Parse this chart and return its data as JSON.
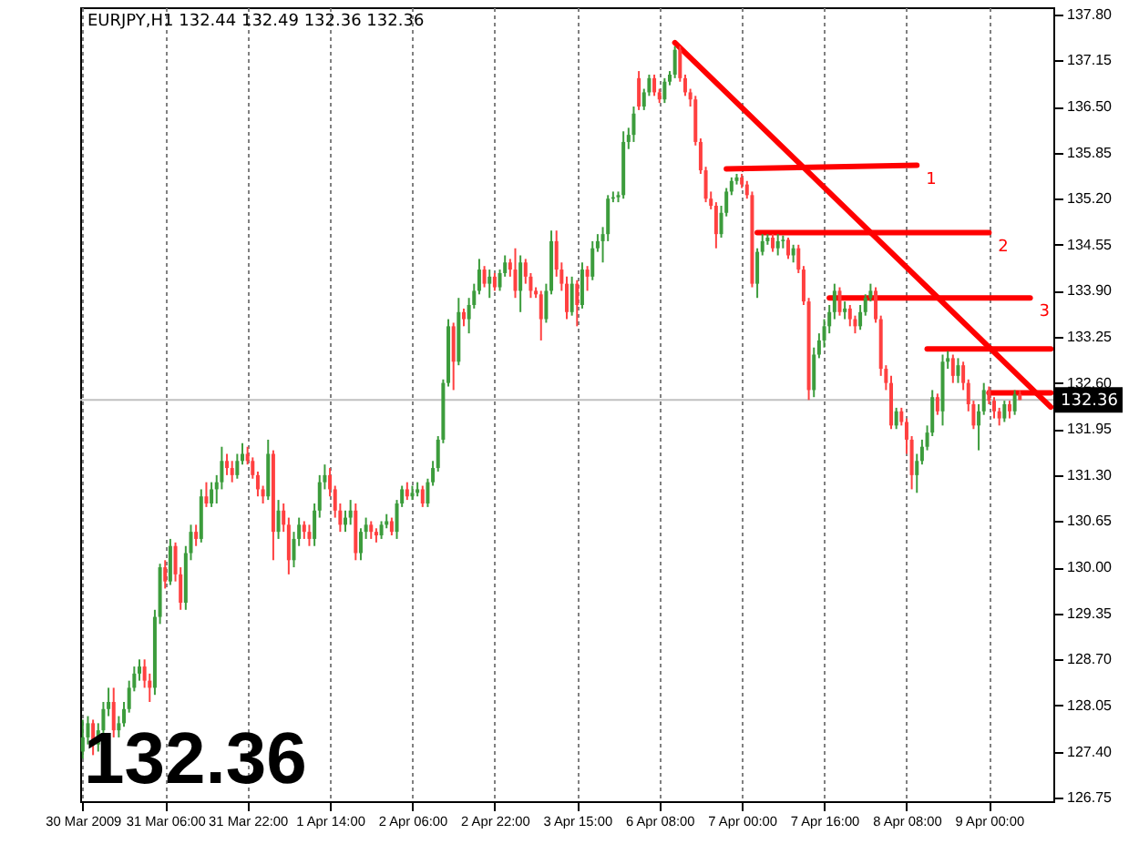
{
  "chart_data": {
    "type": "candlestick",
    "title": "EURJPY,H1  132.44 132.49 132.36 132.36",
    "categories": [
      "30 Mar 2009",
      null,
      null,
      null,
      null,
      null,
      null,
      null,
      null,
      null,
      null,
      null,
      null,
      null,
      null,
      null,
      "31 Mar 06:00",
      null,
      null,
      null,
      null,
      null,
      null,
      null,
      null,
      null,
      null,
      null,
      null,
      null,
      null,
      null,
      "31 Mar 22:00",
      null,
      null,
      null,
      null,
      null,
      null,
      null,
      null,
      null,
      null,
      null,
      null,
      null,
      null,
      null,
      "1 Apr 14:00",
      null,
      null,
      null,
      null,
      null,
      null,
      null,
      null,
      null,
      null,
      null,
      null,
      null,
      null,
      null,
      "2 Apr 06:00",
      null,
      null,
      null,
      null,
      null,
      null,
      null,
      null,
      null,
      null,
      null,
      null,
      null,
      null,
      null,
      "2 Apr 22:00",
      null,
      null,
      null,
      null,
      null,
      null,
      null,
      null,
      null,
      null,
      null,
      null,
      null,
      null,
      null,
      "3 Apr 15:00",
      null,
      null,
      null,
      null,
      null,
      null,
      null,
      null,
      null,
      null,
      null,
      null,
      null,
      null,
      null,
      "6 Apr 08:00",
      null,
      null,
      null,
      null,
      null,
      null,
      null,
      null,
      null,
      null,
      null,
      null,
      null,
      null,
      null,
      "7 Apr 00:00",
      null,
      null,
      null,
      null,
      null,
      null,
      null,
      null,
      null,
      null,
      null,
      null,
      null,
      null,
      null,
      "7 Apr 16:00",
      null,
      null,
      null,
      null,
      null,
      null,
      null,
      null,
      null,
      null,
      null,
      null,
      null,
      null,
      null,
      "8 Apr 08:00",
      null,
      null,
      null,
      null,
      null,
      null,
      null,
      null,
      null,
      null,
      null,
      null,
      null,
      null,
      null,
      "9 Apr 00:00",
      null,
      null,
      null,
      null,
      null,
      null,
      null,
      null,
      null,
      null,
      null,
      null
    ],
    "ohlc": [
      [
        127.4,
        127.85,
        127.3,
        127.6
      ],
      [
        127.6,
        127.9,
        127.5,
        127.8
      ],
      [
        127.8,
        127.85,
        127.35,
        127.5
      ],
      [
        127.5,
        127.8,
        127.4,
        127.7
      ],
      [
        127.7,
        128.1,
        127.6,
        128.0
      ],
      [
        128.0,
        128.3,
        127.9,
        128.1
      ],
      [
        128.1,
        128.3,
        127.6,
        127.7
      ],
      [
        127.7,
        127.9,
        127.6,
        127.8
      ],
      [
        127.8,
        128.1,
        127.75,
        128.0
      ],
      [
        128.0,
        128.4,
        127.95,
        128.3
      ],
      [
        128.3,
        128.6,
        128.25,
        128.5
      ],
      [
        128.5,
        128.7,
        128.4,
        128.6
      ],
      [
        128.6,
        128.7,
        128.3,
        128.4
      ],
      [
        128.4,
        128.5,
        128.1,
        128.3
      ],
      [
        128.3,
        129.4,
        128.2,
        129.3
      ],
      [
        129.3,
        130.05,
        129.2,
        130.0
      ],
      [
        130.0,
        130.1,
        129.7,
        129.8
      ],
      [
        129.8,
        130.4,
        129.75,
        130.3
      ],
      [
        130.3,
        130.35,
        129.8,
        129.9
      ],
      [
        129.9,
        130.0,
        129.4,
        129.5
      ],
      [
        129.5,
        130.3,
        129.4,
        130.2
      ],
      [
        130.2,
        130.6,
        130.1,
        130.5
      ],
      [
        130.5,
        130.6,
        130.3,
        130.4
      ],
      [
        130.4,
        131.1,
        130.35,
        131.0
      ],
      [
        131.0,
        131.2,
        130.85,
        130.9
      ],
      [
        130.9,
        131.2,
        130.85,
        131.1
      ],
      [
        131.1,
        131.3,
        130.9,
        131.2
      ],
      [
        131.2,
        131.7,
        131.1,
        131.5
      ],
      [
        131.5,
        131.6,
        131.3,
        131.4
      ],
      [
        131.4,
        131.5,
        131.2,
        131.3
      ],
      [
        131.3,
        131.6,
        131.25,
        131.5
      ],
      [
        131.5,
        131.75,
        131.45,
        131.6
      ],
      [
        131.6,
        131.7,
        131.45,
        131.5
      ],
      [
        131.5,
        131.55,
        131.25,
        131.3
      ],
      [
        131.3,
        131.35,
        131.0,
        131.1
      ],
      [
        131.1,
        131.15,
        130.9,
        131.0
      ],
      [
        131.0,
        131.8,
        130.95,
        131.6
      ],
      [
        131.6,
        131.65,
        130.1,
        130.5
      ],
      [
        130.5,
        130.95,
        130.4,
        130.8
      ],
      [
        130.8,
        130.9,
        130.5,
        130.6
      ],
      [
        130.6,
        130.7,
        129.9,
        130.1
      ],
      [
        130.1,
        130.5,
        130.0,
        130.4
      ],
      [
        130.4,
        130.7,
        130.3,
        130.6
      ],
      [
        130.6,
        130.65,
        130.4,
        130.5
      ],
      [
        130.5,
        130.6,
        130.3,
        130.4
      ],
      [
        130.4,
        130.9,
        130.3,
        130.8
      ],
      [
        130.8,
        131.3,
        130.7,
        131.2
      ],
      [
        131.2,
        131.45,
        131.1,
        131.3
      ],
      [
        131.3,
        131.4,
        131.0,
        131.1
      ],
      [
        131.1,
        131.15,
        130.7,
        130.8
      ],
      [
        130.8,
        130.9,
        130.5,
        130.6
      ],
      [
        130.6,
        130.8,
        130.5,
        130.7
      ],
      [
        130.7,
        130.95,
        130.6,
        130.8
      ],
      [
        130.8,
        130.9,
        130.1,
        130.2
      ],
      [
        130.2,
        130.55,
        130.1,
        130.5
      ],
      [
        130.5,
        130.7,
        130.4,
        130.6
      ],
      [
        130.6,
        130.65,
        130.4,
        130.5
      ],
      [
        130.5,
        130.55,
        130.35,
        130.45
      ],
      [
        130.45,
        130.65,
        130.4,
        130.6
      ],
      [
        130.6,
        130.75,
        130.55,
        130.65
      ],
      [
        130.65,
        130.7,
        130.45,
        130.5
      ],
      [
        130.5,
        130.95,
        130.4,
        130.9
      ],
      [
        130.9,
        131.15,
        130.85,
        131.1
      ],
      [
        131.1,
        131.2,
        130.95,
        131.0
      ],
      [
        131.0,
        131.15,
        130.95,
        131.05
      ],
      [
        131.05,
        131.2,
        131.0,
        131.1
      ],
      [
        131.1,
        131.15,
        130.85,
        130.9
      ],
      [
        130.9,
        131.25,
        130.85,
        131.2
      ],
      [
        131.2,
        131.5,
        131.15,
        131.4
      ],
      [
        131.4,
        131.85,
        131.35,
        131.8
      ],
      [
        131.8,
        132.65,
        131.75,
        132.6
      ],
      [
        132.6,
        133.5,
        132.55,
        133.4
      ],
      [
        133.4,
        133.45,
        132.5,
        132.9
      ],
      [
        132.9,
        133.8,
        132.85,
        133.6
      ],
      [
        133.6,
        133.65,
        133.4,
        133.5
      ],
      [
        133.5,
        133.8,
        133.3,
        133.7
      ],
      [
        133.7,
        134.0,
        133.65,
        133.9
      ],
      [
        133.9,
        134.35,
        133.85,
        134.2
      ],
      [
        134.2,
        134.25,
        133.95,
        134.0
      ],
      [
        134.0,
        134.2,
        133.8,
        134.1
      ],
      [
        134.1,
        134.15,
        133.9,
        133.95
      ],
      [
        133.95,
        134.2,
        133.9,
        134.15
      ],
      [
        134.15,
        134.4,
        134.1,
        134.3
      ],
      [
        134.3,
        134.35,
        134.1,
        134.2
      ],
      [
        134.2,
        134.5,
        133.8,
        133.9
      ],
      [
        133.9,
        134.4,
        133.6,
        134.3
      ],
      [
        134.3,
        134.35,
        134.0,
        134.1
      ],
      [
        134.1,
        134.15,
        133.8,
        133.9
      ],
      [
        133.9,
        133.95,
        133.8,
        133.85
      ],
      [
        133.85,
        133.9,
        133.2,
        133.5
      ],
      [
        133.5,
        134.0,
        133.45,
        133.9
      ],
      [
        133.9,
        134.75,
        133.85,
        134.6
      ],
      [
        134.6,
        134.75,
        134.1,
        134.2
      ],
      [
        134.2,
        134.3,
        133.9,
        134.0
      ],
      [
        134.0,
        134.1,
        133.5,
        133.6
      ],
      [
        133.6,
        134.1,
        133.55,
        134.0
      ],
      [
        134.0,
        134.05,
        133.4,
        133.7
      ],
      [
        133.7,
        134.3,
        133.65,
        134.2
      ],
      [
        134.2,
        134.25,
        133.9,
        134.1
      ],
      [
        134.1,
        134.6,
        134.05,
        134.5
      ],
      [
        134.5,
        134.7,
        134.45,
        134.6
      ],
      [
        134.6,
        134.8,
        134.3,
        134.7
      ],
      [
        134.7,
        135.25,
        134.6,
        135.2
      ],
      [
        135.2,
        135.3,
        135.15,
        135.22
      ],
      [
        135.22,
        135.3,
        135.15,
        135.25
      ],
      [
        135.25,
        136.15,
        135.2,
        136.0
      ],
      [
        136.0,
        136.2,
        135.9,
        136.1
      ],
      [
        136.1,
        136.5,
        136.0,
        136.4
      ],
      [
        136.9,
        137.0,
        136.45,
        136.5
      ],
      [
        136.5,
        136.75,
        136.45,
        136.7
      ],
      [
        136.7,
        136.95,
        136.65,
        136.9
      ],
      [
        136.9,
        136.95,
        136.65,
        136.7
      ],
      [
        136.7,
        136.75,
        136.55,
        136.6
      ],
      [
        136.6,
        136.9,
        136.55,
        136.85
      ],
      [
        136.85,
        137.0,
        136.8,
        136.95
      ],
      [
        136.95,
        137.35,
        136.9,
        137.3
      ],
      [
        137.3,
        137.35,
        136.85,
        136.9
      ],
      [
        136.9,
        136.95,
        136.65,
        136.7
      ],
      [
        136.7,
        136.75,
        136.5,
        136.6
      ],
      [
        136.6,
        136.65,
        135.95,
        136.0
      ],
      [
        136.0,
        136.05,
        135.55,
        135.6
      ],
      [
        135.6,
        135.65,
        135.15,
        135.2
      ],
      [
        135.2,
        135.3,
        135.05,
        135.1
      ],
      [
        135.1,
        135.15,
        134.5,
        134.7
      ],
      [
        134.7,
        135.1,
        134.65,
        135.0
      ],
      [
        135.0,
        135.35,
        134.95,
        135.3
      ],
      [
        135.3,
        135.5,
        135.25,
        135.45
      ],
      [
        135.45,
        135.55,
        135.4,
        135.5
      ],
      [
        135.5,
        135.55,
        135.35,
        135.4
      ],
      [
        135.4,
        135.45,
        135.2,
        135.25
      ],
      [
        135.25,
        135.3,
        133.95,
        134.0
      ],
      [
        134.0,
        134.5,
        133.8,
        134.45
      ],
      [
        134.45,
        134.7,
        134.4,
        134.6
      ],
      [
        134.6,
        134.7,
        134.55,
        134.65
      ],
      [
        134.65,
        134.7,
        134.45,
        134.5
      ],
      [
        134.5,
        134.7,
        134.4,
        134.6
      ],
      [
        134.6,
        134.68,
        134.5,
        134.62
      ],
      [
        134.62,
        134.65,
        134.35,
        134.4
      ],
      [
        134.4,
        134.55,
        134.3,
        134.5
      ],
      [
        134.5,
        134.55,
        134.15,
        134.2
      ],
      [
        134.2,
        134.25,
        133.7,
        133.75
      ],
      [
        133.75,
        133.8,
        132.36,
        132.5
      ],
      [
        132.5,
        133.1,
        132.4,
        133.0
      ],
      [
        133.0,
        133.3,
        132.95,
        133.2
      ],
      [
        133.2,
        133.5,
        133.1,
        133.4
      ],
      [
        133.4,
        133.7,
        133.3,
        133.6
      ],
      [
        133.6,
        134.0,
        133.5,
        133.9
      ],
      [
        133.9,
        133.95,
        133.55,
        133.6
      ],
      [
        133.6,
        133.75,
        133.5,
        133.65
      ],
      [
        133.65,
        133.7,
        133.4,
        133.5
      ],
      [
        133.5,
        133.55,
        133.3,
        133.4
      ],
      [
        133.4,
        133.7,
        133.35,
        133.6
      ],
      [
        133.6,
        133.85,
        133.55,
        133.8
      ],
      [
        133.8,
        134.0,
        133.75,
        133.9
      ],
      [
        133.9,
        133.95,
        133.45,
        133.5
      ],
      [
        133.5,
        133.55,
        132.7,
        132.8
      ],
      [
        132.8,
        132.85,
        132.5,
        132.6
      ],
      [
        132.6,
        132.7,
        131.95,
        132.0
      ],
      [
        132.0,
        132.25,
        131.95,
        132.2
      ],
      [
        132.2,
        132.25,
        132.0,
        132.05
      ],
      [
        132.05,
        132.1,
        131.6,
        131.8
      ],
      [
        131.8,
        131.85,
        131.1,
        131.3
      ],
      [
        131.3,
        131.6,
        131.05,
        131.5
      ],
      [
        131.5,
        131.8,
        131.45,
        131.7
      ],
      [
        131.7,
        132.0,
        131.65,
        131.9
      ],
      [
        131.9,
        132.5,
        131.85,
        132.4
      ],
      [
        132.4,
        132.45,
        132.15,
        132.2
      ],
      [
        132.2,
        133.0,
        132.0,
        132.9
      ],
      [
        132.9,
        133.05,
        132.8,
        132.95
      ],
      [
        132.95,
        133.0,
        132.6,
        132.7
      ],
      [
        132.7,
        132.95,
        132.6,
        132.85
      ],
      [
        132.85,
        132.9,
        132.5,
        132.6
      ],
      [
        132.6,
        132.65,
        132.2,
        132.3
      ],
      [
        132.3,
        132.35,
        131.95,
        132.0
      ],
      [
        132.0,
        132.3,
        131.65,
        132.2
      ],
      [
        132.2,
        132.6,
        132.15,
        132.5
      ],
      [
        132.5,
        132.55,
        132.3,
        132.35
      ],
      [
        132.35,
        132.4,
        132.1,
        132.2
      ],
      [
        132.2,
        132.25,
        132.0,
        132.1
      ],
      [
        132.1,
        132.35,
        132.05,
        132.3
      ],
      [
        132.3,
        132.35,
        132.1,
        132.2
      ],
      [
        132.2,
        132.5,
        132.15,
        132.44
      ],
      [
        132.44,
        132.49,
        132.36,
        132.36
      ],
      null,
      null,
      null,
      null,
      null,
      null
    ],
    "colors": [
      "#3c9c3c",
      "#3c9c3c",
      "#ff4040",
      "#3c9c3c",
      "#3c9c3c",
      "#3c9c3c",
      "#ff4040",
      "#3c9c3c",
      "#3c9c3c",
      "#3c9c3c",
      "#3c9c3c",
      "#3c9c3c",
      "#ff4040",
      "#ff4040",
      "#3c9c3c",
      "#3c9c3c",
      "#ff4040",
      "#3c9c3c",
      "#ff4040",
      "#ff4040",
      "#3c9c3c",
      "#3c9c3c",
      "#ff4040",
      "#3c9c3c",
      "#ff4040",
      "#3c9c3c",
      "#3c9c3c",
      "#3c9c3c",
      "#ff4040",
      "#ff4040",
      "#3c9c3c",
      "#3c9c3c",
      "#ff4040",
      "#ff4040",
      "#ff4040",
      "#ff4040",
      "#3c9c3c",
      "#ff4040",
      "#3c9c3c",
      "#ff4040",
      "#ff4040",
      "#3c9c3c",
      "#3c9c3c",
      "#ff4040",
      "#ff4040",
      "#3c9c3c",
      "#3c9c3c",
      "#3c9c3c",
      "#ff4040",
      "#ff4040",
      "#ff4040",
      "#3c9c3c",
      "#3c9c3c",
      "#ff4040",
      "#3c9c3c",
      "#3c9c3c",
      "#ff4040",
      "#ff4040",
      "#3c9c3c",
      "#3c9c3c",
      "#ff4040",
      "#3c9c3c",
      "#3c9c3c",
      "#ff4040",
      "#3c9c3c",
      "#3c9c3c",
      "#ff4040",
      "#3c9c3c",
      "#3c9c3c",
      "#3c9c3c",
      "#3c9c3c",
      "#3c9c3c",
      "#ff4040",
      "#3c9c3c",
      "#ff4040",
      "#3c9c3c",
      "#3c9c3c",
      "#3c9c3c",
      "#ff4040",
      "#3c9c3c",
      "#ff4040",
      "#3c9c3c",
      "#3c9c3c",
      "#ff4040",
      "#ff4040",
      "#3c9c3c",
      "#ff4040",
      "#ff4040",
      "#ff4040",
      "#ff4040",
      "#3c9c3c",
      "#3c9c3c",
      "#ff4040",
      "#ff4040",
      "#ff4040",
      "#3c9c3c",
      "#ff4040",
      "#3c9c3c",
      "#ff4040",
      "#3c9c3c",
      "#3c9c3c",
      "#3c9c3c",
      "#3c9c3c",
      "#3c9c3c",
      "#3c9c3c",
      "#3c9c3c",
      "#3c9c3c",
      "#3c9c3c",
      "#ff4040",
      "#3c9c3c",
      "#3c9c3c",
      "#ff4040",
      "#ff4040",
      "#3c9c3c",
      "#3c9c3c",
      "#3c9c3c",
      "#ff4040",
      "#ff4040",
      "#ff4040",
      "#ff4040",
      "#ff4040",
      "#ff4040",
      "#ff4040",
      "#ff4040",
      "#3c9c3c",
      "#3c9c3c",
      "#3c9c3c",
      "#3c9c3c",
      "#ff4040",
      "#ff4040",
      "#ff4040",
      "#3c9c3c",
      "#3c9c3c",
      "#3c9c3c",
      "#ff4040",
      "#3c9c3c",
      "#3c9c3c",
      "#ff4040",
      "#3c9c3c",
      "#ff4040",
      "#ff4040",
      "#ff4040",
      "#3c9c3c",
      "#3c9c3c",
      "#3c9c3c",
      "#3c9c3c",
      "#3c9c3c",
      "#ff4040",
      "#3c9c3c",
      "#ff4040",
      "#ff4040",
      "#3c9c3c",
      "#3c9c3c",
      "#3c9c3c",
      "#ff4040",
      "#ff4040",
      "#ff4040",
      "#ff4040",
      "#3c9c3c",
      "#ff4040",
      "#ff4040",
      "#ff4040",
      "#3c9c3c",
      "#3c9c3c",
      "#3c9c3c",
      "#3c9c3c",
      "#ff4040",
      "#3c9c3c",
      "#3c9c3c",
      "#ff4040",
      "#3c9c3c",
      "#ff4040",
      "#ff4040",
      "#ff4040",
      "#3c9c3c",
      "#3c9c3c",
      "#ff4040",
      "#ff4040",
      "#ff4040",
      "#3c9c3c",
      "#ff4040",
      "#3c9c3c",
      "#ff4040",
      null,
      null,
      null,
      null,
      null,
      null
    ],
    "series": [
      {
        "type": "line",
        "color": "#ff0000",
        "values": [
          null,
          null,
          null,
          null,
          null,
          null,
          null,
          null,
          null,
          null,
          null,
          null,
          null,
          null,
          null,
          null,
          null,
          null,
          null,
          null,
          null,
          null,
          null,
          null,
          null,
          null,
          null,
          null,
          null,
          null,
          null,
          null,
          null,
          null,
          null,
          null,
          null,
          null,
          null,
          null,
          null,
          null,
          null,
          null,
          null,
          null,
          null,
          null,
          null,
          null,
          null,
          null,
          null,
          null,
          null,
          null,
          null,
          null,
          null,
          null,
          null,
          null,
          null,
          null,
          null,
          null,
          null,
          null,
          null,
          null,
          null,
          null,
          null,
          null,
          null,
          null,
          null,
          null,
          null,
          null,
          null,
          null,
          null,
          null,
          null,
          null,
          null,
          null,
          null,
          null,
          null,
          null,
          null,
          null,
          null,
          null,
          null,
          null,
          null,
          null,
          null,
          null,
          null,
          null,
          null,
          null,
          null,
          null,
          null,
          null,
          null,
          null,
          null,
          null,
          null,
          137.4,
          null,
          null,
          null,
          null,
          null,
          null,
          null,
          null,
          null,
          null,
          null,
          null,
          null,
          null,
          null,
          null,
          null,
          null,
          null,
          null,
          null,
          null,
          null,
          null,
          null,
          null,
          null,
          null,
          null,
          null,
          null,
          null,
          null,
          null,
          null,
          null,
          null,
          null,
          null,
          null,
          null,
          null,
          null,
          null,
          null,
          null,
          null,
          null,
          null,
          null,
          null,
          null,
          null,
          null,
          null,
          null,
          null,
          null,
          null,
          null,
          null,
          null,
          null,
          null,
          null,
          null,
          null,
          null,
          null,
          null,
          null,
          null,
          132.26
        ]
      },
      {
        "type": "line",
        "name": "1",
        "color": "#ff0000",
        "values": [
          null,
          null,
          null,
          null,
          null,
          null,
          null,
          null,
          null,
          null,
          null,
          null,
          null,
          null,
          null,
          null,
          null,
          null,
          null,
          null,
          null,
          null,
          null,
          null,
          null,
          null,
          null,
          null,
          null,
          null,
          null,
          null,
          null,
          null,
          null,
          null,
          null,
          null,
          null,
          null,
          null,
          null,
          null,
          null,
          null,
          null,
          null,
          null,
          null,
          null,
          null,
          null,
          null,
          null,
          null,
          null,
          null,
          null,
          null,
          null,
          null,
          null,
          null,
          null,
          null,
          null,
          null,
          null,
          null,
          null,
          null,
          null,
          null,
          null,
          null,
          null,
          null,
          null,
          null,
          null,
          null,
          null,
          null,
          null,
          null,
          null,
          null,
          null,
          null,
          null,
          null,
          null,
          null,
          null,
          null,
          null,
          null,
          null,
          null,
          null,
          null,
          null,
          null,
          null,
          null,
          null,
          null,
          null,
          null,
          null,
          null,
          null,
          null,
          null,
          null,
          null,
          null,
          null,
          null,
          null,
          null,
          null,
          null,
          null,
          null,
          135.62,
          null,
          null,
          null,
          null,
          null,
          null,
          null,
          null,
          null,
          null,
          null,
          null,
          null,
          null,
          null,
          null,
          null,
          null,
          null,
          null,
          null,
          null,
          null,
          null,
          null,
          null,
          null,
          null,
          null,
          null,
          null,
          null,
          null,
          null,
          null,
          null,
          135.67,
          null,
          null,
          null,
          null,
          null,
          null,
          null,
          null,
          null,
          null,
          null,
          null,
          null,
          null,
          null,
          null,
          null,
          null,
          null,
          null,
          null,
          null,
          null,
          null,
          null,
          null
        ]
      },
      {
        "type": "line",
        "name": "2",
        "color": "#ff0000",
        "values": [
          null,
          null,
          null,
          null,
          null,
          null,
          null,
          null,
          null,
          null,
          null,
          null,
          null,
          null,
          null,
          null,
          null,
          null,
          null,
          null,
          null,
          null,
          null,
          null,
          null,
          null,
          null,
          null,
          null,
          null,
          null,
          null,
          null,
          null,
          null,
          null,
          null,
          null,
          null,
          null,
          null,
          null,
          null,
          null,
          null,
          null,
          null,
          null,
          null,
          null,
          null,
          null,
          null,
          null,
          null,
          null,
          null,
          null,
          null,
          null,
          null,
          null,
          null,
          null,
          null,
          null,
          null,
          null,
          null,
          null,
          null,
          null,
          null,
          null,
          null,
          null,
          null,
          null,
          null,
          null,
          null,
          null,
          null,
          null,
          null,
          null,
          null,
          null,
          null,
          null,
          null,
          null,
          null,
          null,
          null,
          null,
          null,
          null,
          null,
          null,
          null,
          null,
          null,
          null,
          null,
          null,
          null,
          null,
          null,
          null,
          null,
          null,
          null,
          null,
          null,
          null,
          null,
          null,
          null,
          null,
          null,
          null,
          null,
          null,
          null,
          null,
          null,
          null,
          null,
          null,
          null,
          134.72,
          null,
          null,
          null,
          null,
          null,
          null,
          null,
          null,
          null,
          null,
          null,
          null,
          null,
          null,
          null,
          null,
          null,
          null,
          null,
          null,
          null,
          null,
          null,
          null,
          null,
          null,
          null,
          null,
          null,
          null,
          null,
          null,
          null,
          null,
          null,
          null,
          null,
          null,
          null,
          null,
          null,
          null,
          null,
          null,
          134.72,
          null,
          null,
          null,
          null,
          null,
          null,
          null,
          null,
          null,
          null,
          null,
          null
        ]
      },
      {
        "type": "line",
        "name": "3",
        "color": "#ff0000",
        "values": [
          null,
          null,
          null,
          null,
          null,
          null,
          null,
          null,
          null,
          null,
          null,
          null,
          null,
          null,
          null,
          null,
          null,
          null,
          null,
          null,
          null,
          null,
          null,
          null,
          null,
          null,
          null,
          null,
          null,
          null,
          null,
          null,
          null,
          null,
          null,
          null,
          null,
          null,
          null,
          null,
          null,
          null,
          null,
          null,
          null,
          null,
          null,
          null,
          null,
          null,
          null,
          null,
          null,
          null,
          null,
          null,
          null,
          null,
          null,
          null,
          null,
          null,
          null,
          null,
          null,
          null,
          null,
          null,
          null,
          null,
          null,
          null,
          null,
          null,
          null,
          null,
          null,
          null,
          null,
          null,
          null,
          null,
          null,
          null,
          null,
          null,
          null,
          null,
          null,
          null,
          null,
          null,
          null,
          null,
          null,
          null,
          null,
          null,
          null,
          null,
          null,
          null,
          null,
          null,
          null,
          null,
          null,
          null,
          null,
          null,
          null,
          null,
          null,
          null,
          null,
          null,
          null,
          null,
          null,
          null,
          null,
          null,
          null,
          null,
          null,
          null,
          null,
          null,
          null,
          null,
          null,
          null,
          null,
          null,
          null,
          null,
          null,
          null,
          null,
          null,
          null,
          null,
          null,
          null,
          null,
          133.8,
          null,
          null,
          null,
          null,
          null,
          null,
          null,
          null,
          null,
          null,
          null,
          null,
          null,
          null,
          null,
          null,
          null,
          null,
          null,
          null,
          null,
          null,
          null,
          null,
          null,
          null,
          null,
          null,
          null,
          null,
          null,
          null,
          null,
          null,
          null,
          null,
          null,
          null,
          133.8,
          null,
          null,
          null,
          null
        ]
      },
      {
        "type": "line",
        "color": "#ff0000",
        "values": [
          null,
          null,
          null,
          null,
          null,
          null,
          null,
          null,
          null,
          null,
          null,
          null,
          null,
          null,
          null,
          null,
          null,
          null,
          null,
          null,
          null,
          null,
          null,
          null,
          null,
          null,
          null,
          null,
          null,
          null,
          null,
          null,
          null,
          null,
          null,
          null,
          null,
          null,
          null,
          null,
          null,
          null,
          null,
          null,
          null,
          null,
          null,
          null,
          null,
          null,
          null,
          null,
          null,
          null,
          null,
          null,
          null,
          null,
          null,
          null,
          null,
          null,
          null,
          null,
          null,
          null,
          null,
          null,
          null,
          null,
          null,
          null,
          null,
          null,
          null,
          null,
          null,
          null,
          null,
          null,
          null,
          null,
          null,
          null,
          null,
          null,
          null,
          null,
          null,
          null,
          null,
          null,
          null,
          null,
          null,
          null,
          null,
          null,
          null,
          null,
          null,
          null,
          null,
          null,
          null,
          null,
          null,
          null,
          null,
          null,
          null,
          null,
          null,
          null,
          null,
          null,
          null,
          null,
          null,
          null,
          null,
          null,
          null,
          null,
          null,
          null,
          null,
          null,
          null,
          null,
          null,
          null,
          null,
          null,
          null,
          null,
          null,
          null,
          null,
          null,
          null,
          null,
          null,
          null,
          null,
          null,
          null,
          null,
          null,
          null,
          null,
          null,
          null,
          null,
          null,
          null,
          null,
          null,
          null,
          null,
          null,
          null,
          null,
          null,
          133.08,
          null,
          null,
          null,
          null,
          null,
          null,
          null,
          null,
          null,
          null,
          null,
          null,
          null,
          null,
          null,
          null,
          null,
          null,
          null,
          null,
          null,
          null,
          null,
          133.08
        ]
      },
      {
        "type": "line",
        "color": "#ff0000",
        "values": [
          null,
          null,
          null,
          null,
          null,
          null,
          null,
          null,
          null,
          null,
          null,
          null,
          null,
          null,
          null,
          null,
          null,
          null,
          null,
          null,
          null,
          null,
          null,
          null,
          null,
          null,
          null,
          null,
          null,
          null,
          null,
          null,
          null,
          null,
          null,
          null,
          null,
          null,
          null,
          null,
          null,
          null,
          null,
          null,
          null,
          null,
          null,
          null,
          null,
          null,
          null,
          null,
          null,
          null,
          null,
          null,
          null,
          null,
          null,
          null,
          null,
          null,
          null,
          null,
          null,
          null,
          null,
          null,
          null,
          null,
          null,
          null,
          null,
          null,
          null,
          null,
          null,
          null,
          null,
          null,
          null,
          null,
          null,
          null,
          null,
          null,
          null,
          null,
          null,
          null,
          null,
          null,
          null,
          null,
          null,
          null,
          null,
          null,
          null,
          null,
          null,
          null,
          null,
          null,
          null,
          null,
          null,
          null,
          null,
          null,
          null,
          null,
          null,
          null,
          null,
          null,
          null,
          null,
          null,
          null,
          null,
          null,
          null,
          null,
          null,
          null,
          null,
          null,
          null,
          null,
          null,
          null,
          null,
          null,
          null,
          null,
          null,
          null,
          null,
          null,
          null,
          null,
          null,
          null,
          null,
          null,
          null,
          null,
          null,
          null,
          null,
          null,
          null,
          null,
          null,
          null,
          null,
          null,
          null,
          null,
          null,
          null,
          null,
          null,
          null,
          null,
          null,
          null,
          null,
          null,
          null,
          null,
          null,
          null,
          null,
          null,
          132.46,
          null,
          null,
          null,
          null,
          null,
          null,
          null,
          null,
          null,
          null,
          null,
          132.46
        ]
      }
    ],
    "ylim": [
      126.7,
      137.9
    ],
    "yticks": [
      126.75,
      {
        "value": 127.4,
        "label": "127.40"
      },
      128.05,
      {
        "value": 128.7,
        "label": "128.70"
      },
      129.35,
      {
        "value": 130.0,
        "label": "130.00"
      },
      130.65,
      {
        "value": 131.3,
        "label": "131.30"
      },
      131.95,
      {
        "value": 132.6,
        "label": "132.60"
      },
      133.25,
      {
        "value": 133.9,
        "label": "133.90"
      },
      134.55,
      {
        "value": 135.2,
        "label": "135.20"
      },
      135.85,
      {
        "value": 136.5,
        "label": "136.50"
      },
      137.15,
      {
        "value": 137.8,
        "label": "137.80"
      }
    ],
    "grid": "x",
    "ref_lines": [
      {
        "axis": "y",
        "value": 132.36,
        "label": "132.36",
        "color": "#c0c0c0"
      }
    ],
    "annotations": [
      "132.36"
    ]
  }
}
